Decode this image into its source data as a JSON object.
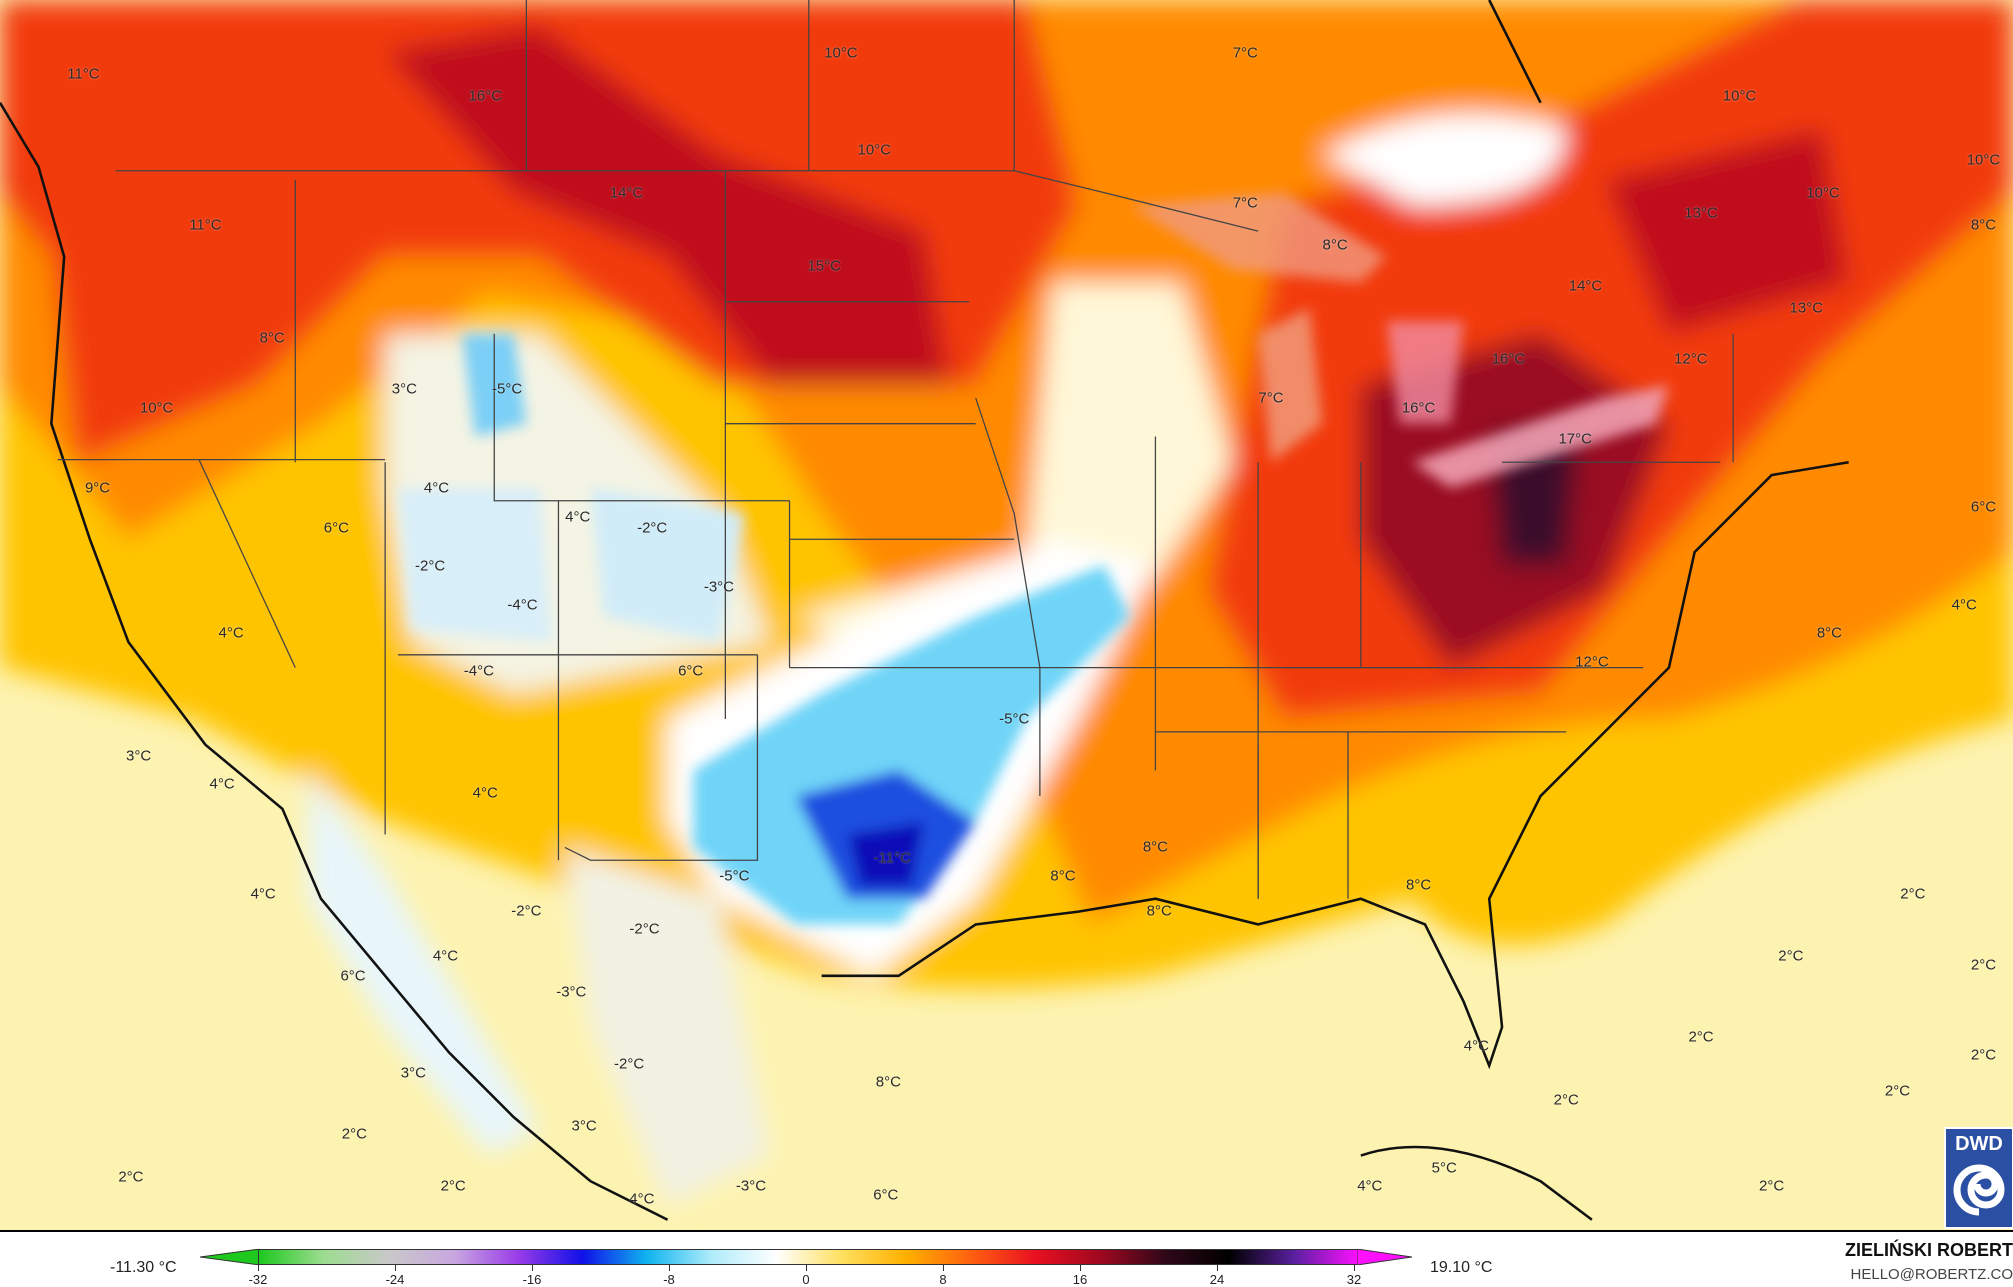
{
  "map": {
    "labels": [
      "11°C",
      "16°C",
      "10°C",
      "10°C",
      "7°C",
      "10°C",
      "10°C",
      "11°C",
      "14°C",
      "15°C",
      "7°C",
      "8°C",
      "13°C",
      "10°C",
      "8°C",
      "8°C",
      "3°C",
      "-5°C",
      "14°C",
      "13°C",
      "10°C",
      "12°C",
      "16°C",
      "7°C",
      "16°C",
      "17°C",
      "9°C",
      "4°C",
      "6°C",
      "4°C",
      "-2°C",
      "6°C",
      "-2°C",
      "-3°C",
      "-4°C",
      "4°C",
      "4°C",
      "-4°C",
      "6°C",
      "8°C",
      "12°C",
      "-5°C",
      "3°C",
      "4°C",
      "4°C",
      "-11°C",
      "-5°C",
      "8°C",
      "8°C",
      "4°C",
      "8°C",
      "8°C",
      "2°C",
      "-2°C",
      "-2°C",
      "4°C",
      "2°C",
      "2°C",
      "6°C",
      "-3°C",
      "2°C",
      "4°C",
      "2°C",
      "3°C",
      "-2°C",
      "8°C",
      "2°C",
      "2°C",
      "3°C",
      "2°C",
      "2°C",
      "2°C",
      "-3°C",
      "4°C",
      "5°C",
      "2°C",
      "4°C",
      "6°C"
    ]
  },
  "legend": {
    "min_label": "-11.30 °C",
    "max_label": "19.10 °C",
    "ticks": [
      "-32",
      "-24",
      "-16",
      "-8",
      "0",
      "8",
      "16",
      "24",
      "32"
    ],
    "unit": "°C",
    "colors": [
      "#1ec81e",
      "#9ddc90",
      "#c8c8c8",
      "#c8a8e0",
      "#9a3ce8",
      "#1010e8",
      "#10b4f0",
      "#b0ecfa",
      "#ffffff",
      "#ffe060",
      "#ffb000",
      "#ff6010",
      "#e81020",
      "#a00820",
      "#300818",
      "#000000",
      "#5a20a0",
      "#ff10ff"
    ]
  },
  "credits": {
    "author": "ZIELIŃSKI ROBERT",
    "email": "HELLO@ROBERTZ.CO",
    "logo": "DWD"
  }
}
